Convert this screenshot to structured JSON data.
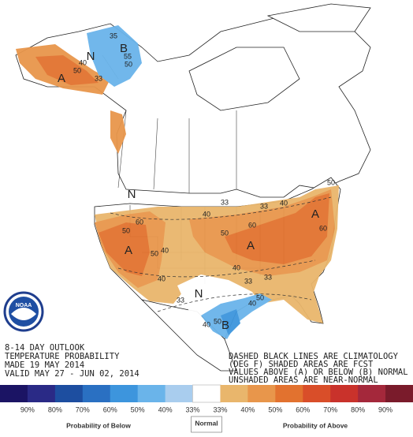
{
  "header": {
    "lines": [
      "8-14 DAY OUTLOOK",
      "TEMPERATURE PROBABILITY",
      "MADE  19 MAY 2014",
      "VALID  MAY 27 - JUN 02, 2014"
    ]
  },
  "notes": [
    "DASHED BLACK LINES ARE CLIMATOLOGY",
    "(DEG F) SHADED AREAS ARE FCST",
    "VALUES ABOVE (A) OR BELOW (B) NORMAL",
    "UNSHADED AREAS ARE NEAR-NORMAL"
  ],
  "logo": {
    "text": "NOAA"
  },
  "map_labels": [
    "N",
    "B",
    "A",
    "50",
    "40",
    "33",
    "35",
    "55",
    "50",
    "N",
    "A",
    "A",
    "A",
    "N",
    "B",
    "50",
    "60",
    "40",
    "50",
    "40",
    "33",
    "33",
    "40",
    "50",
    "60",
    "33",
    "40",
    "50",
    "60",
    "40",
    "33",
    "33",
    "40",
    "50",
    "40",
    "50"
  ],
  "legend": {
    "colors": [
      "#1b1464",
      "#2a2a86",
      "#1d4ea0",
      "#2a70c2",
      "#3d95dd",
      "#6ab4ea",
      "#a9cdee",
      "#ffffff",
      "#e9b66c",
      "#e8964b",
      "#e2722f",
      "#d94e29",
      "#c9322b",
      "#a4283b",
      "#7a1b2b"
    ],
    "labels": [
      "90%",
      "80%",
      "70%",
      "60%",
      "50%",
      "40%",
      "33%",
      "33%",
      "40%",
      "50%",
      "60%",
      "70%",
      "80%",
      "90%"
    ],
    "below": "Probability of Below",
    "normal": "Normal",
    "above": "Probability of Above"
  }
}
